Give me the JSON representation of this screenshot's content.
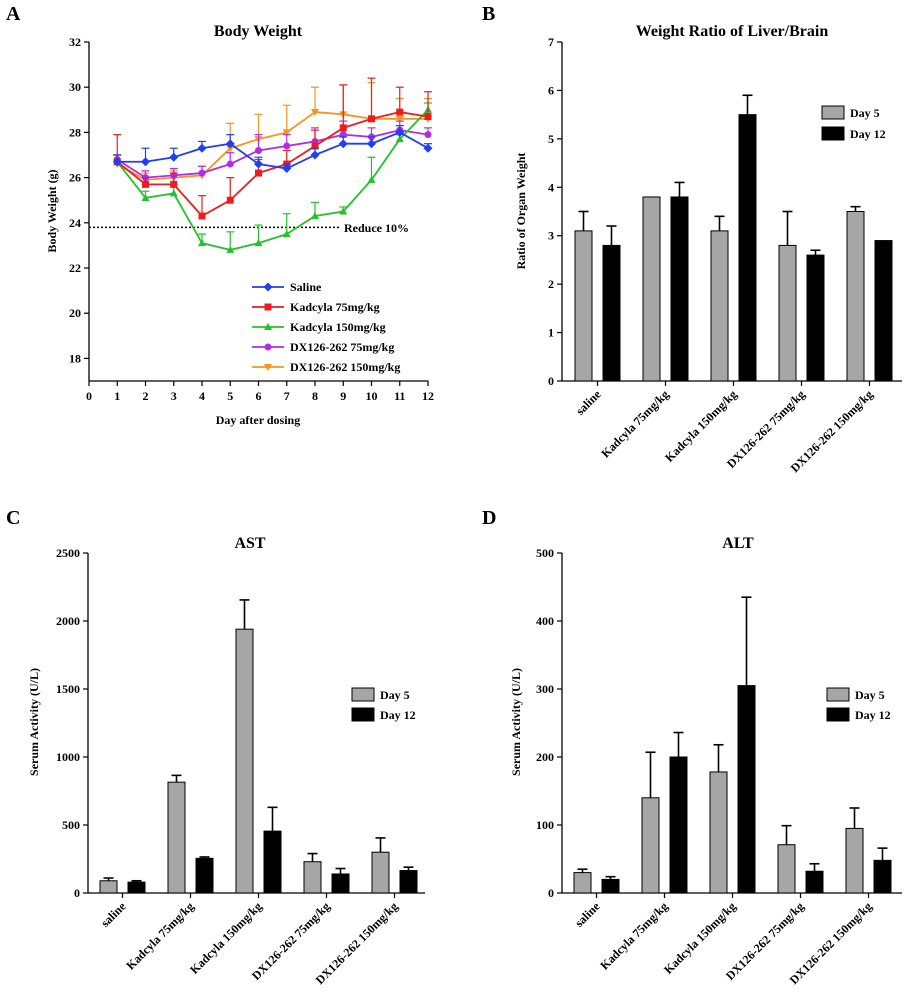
{
  "colors": {
    "gray_bar": "#a6a6a6",
    "black_bar": "#000000",
    "saline": "#1f3ff0",
    "kadcyla75": "#ee1c1c",
    "kadcyla150": "#22c22a",
    "dx75": "#b22be6",
    "dx150": "#f7941d"
  },
  "chart_data": [
    {
      "id": "A",
      "letter": "A",
      "type": "line",
      "title": "Body Weight",
      "xlabel": "Day after dosing",
      "ylabel": "Body Weight (g)",
      "xlim": [
        0,
        12
      ],
      "ylim": [
        17,
        32
      ],
      "xticks": [
        "0",
        "1",
        "2",
        "3",
        "4",
        "5",
        "6",
        "7",
        "8",
        "9",
        "10",
        "11",
        "12"
      ],
      "yticks": [
        "18",
        "20",
        "22",
        "24",
        "26",
        "28",
        "30",
        "32"
      ],
      "x": [
        1,
        2,
        3,
        4,
        5,
        6,
        7,
        8,
        9,
        10,
        11,
        12
      ],
      "reference_line": {
        "y": 23.8,
        "label": "Reduce 10%"
      },
      "series": [
        {
          "name": "Saline",
          "color_key": "saline",
          "marker": "diamond",
          "values": [
            26.7,
            26.7,
            26.9,
            27.3,
            27.5,
            26.6,
            26.4,
            27.0,
            27.5,
            27.5,
            28.0,
            27.3
          ],
          "errors": [
            0.3,
            0.6,
            0.4,
            0.3,
            0.4,
            0.3,
            0.2,
            0.3,
            0.3,
            0.3,
            0.3,
            0.2
          ]
        },
        {
          "name": "Kadcyla 75mg/kg",
          "color_key": "kadcyla75",
          "marker": "square",
          "values": [
            26.7,
            25.7,
            25.7,
            24.3,
            25.0,
            26.2,
            26.6,
            27.4,
            28.2,
            28.6,
            28.9,
            28.7
          ],
          "errors": [
            1.2,
            0.3,
            0.5,
            0.9,
            1.0,
            0.6,
            0.6,
            0.7,
            1.9,
            1.8,
            1.1,
            1.1
          ]
        },
        {
          "name": "Kadcyla 150mg/kg",
          "color_key": "kadcyla150",
          "marker": "triangle",
          "values": [
            26.7,
            25.1,
            25.3,
            23.1,
            22.8,
            23.1,
            23.5,
            24.3,
            24.5,
            25.9,
            27.7,
            29.0
          ],
          "errors": [
            0.3,
            0.3,
            0.4,
            0.4,
            0.8,
            0.8,
            0.9,
            0.6,
            0.2,
            1.0,
            0.2,
            0.3
          ]
        },
        {
          "name": "DX126-262 75mg/kg",
          "color_key": "dx75",
          "marker": "circle",
          "values": [
            26.8,
            26.0,
            26.1,
            26.2,
            26.6,
            27.2,
            27.4,
            27.6,
            27.9,
            27.8,
            28.1,
            27.9
          ],
          "errors": [
            0.2,
            0.3,
            0.3,
            0.3,
            0.5,
            0.7,
            0.5,
            0.6,
            0.6,
            0.4,
            0.4,
            0.3
          ]
        },
        {
          "name": "DX126-262 150mg/kg",
          "color_key": "dx150",
          "marker": "triangle-down",
          "values": [
            26.6,
            25.9,
            26.0,
            26.1,
            27.3,
            27.7,
            28.0,
            28.9,
            28.8,
            28.6,
            28.6,
            28.6
          ],
          "errors": [
            0.4,
            0.3,
            0.3,
            0.4,
            1.1,
            1.1,
            1.2,
            1.1,
            1.3,
            1.6,
            0.9,
            0.9
          ]
        }
      ]
    },
    {
      "id": "B",
      "letter": "B",
      "type": "bar",
      "title": "Weight Ratio of Liver/Brain",
      "ylabel": "Ratio of Organ Weight",
      "xlabel": "",
      "ylim": [
        0,
        7
      ],
      "yticks": [
        "0",
        "1",
        "2",
        "3",
        "4",
        "5",
        "6",
        "7"
      ],
      "categories": [
        "saline",
        "Kadcyla 75mg/kg",
        "Kadcyla 150mg/kg",
        "DX126-262 75mg/kg",
        "DX126-262 150mg/kg"
      ],
      "legend_position": "top-right",
      "series": [
        {
          "name": "Day 5",
          "color_key": "gray_bar",
          "values": [
            3.1,
            3.8,
            3.1,
            2.8,
            3.5
          ],
          "errors": [
            0.4,
            0,
            0.3,
            0.7,
            0.1
          ]
        },
        {
          "name": "Day 12",
          "color_key": "black_bar",
          "values": [
            2.8,
            3.8,
            5.5,
            2.6,
            2.9
          ],
          "errors": [
            0.4,
            0.3,
            0.4,
            0.1,
            0
          ]
        }
      ]
    },
    {
      "id": "C",
      "letter": "C",
      "type": "bar",
      "title": "AST",
      "ylabel": "Serum Activity (U/L)",
      "xlabel": "",
      "ylim": [
        0,
        2500
      ],
      "yticks": [
        "0",
        "500",
        "1000",
        "1500",
        "2000",
        "2500"
      ],
      "categories": [
        "saline",
        "Kadcyla 75mg/kg",
        "Kadcyla 150mg/kg",
        "DX126-262 75mg/kg",
        "DX126-262 150mg/kg"
      ],
      "legend_position": "middle-right",
      "series": [
        {
          "name": "Day 5",
          "color_key": "gray_bar",
          "values": [
            90,
            815,
            1940,
            230,
            300
          ],
          "errors": [
            20,
            50,
            215,
            60,
            105
          ]
        },
        {
          "name": "Day 12",
          "color_key": "black_bar",
          "values": [
            80,
            255,
            455,
            140,
            165
          ],
          "errors": [
            10,
            10,
            175,
            40,
            25
          ]
        }
      ]
    },
    {
      "id": "D",
      "letter": "D",
      "type": "bar",
      "title": "ALT",
      "ylabel": "Serum Activity (U/L)",
      "xlabel": "",
      "ylim": [
        0,
        500
      ],
      "yticks": [
        "0",
        "100",
        "200",
        "300",
        "400",
        "500"
      ],
      "categories": [
        "saline",
        "Kadcyla 75mg/kg",
        "Kadcyla 150mg/kg",
        "DX126-262 75mg/kg",
        "DX126-262 150mg/kg"
      ],
      "legend_position": "middle-right",
      "series": [
        {
          "name": "Day 5",
          "color_key": "gray_bar",
          "values": [
            30,
            140,
            178,
            71,
            95
          ],
          "errors": [
            5,
            67,
            40,
            28,
            30
          ]
        },
        {
          "name": "Day 12",
          "color_key": "black_bar",
          "values": [
            20,
            200,
            305,
            32,
            48
          ],
          "errors": [
            4,
            36,
            130,
            11,
            18
          ]
        }
      ]
    }
  ]
}
